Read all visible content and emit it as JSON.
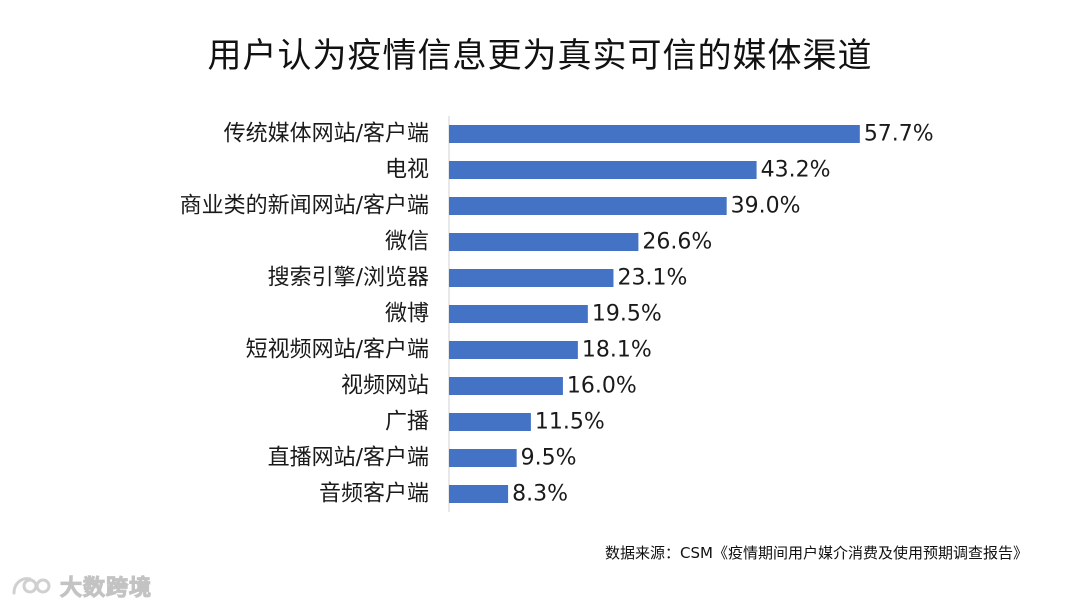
{
  "chart_data": {
    "type": "bar",
    "orientation": "horizontal",
    "title": "用户认为疫情信息更为真实可信的媒体渠道",
    "categories": [
      "传统媒体网站/客户端",
      "电视",
      "商业类的新闻网站/客户端",
      "微信",
      "搜索引擎/浏览器",
      "微博",
      "短视频网站/客户端",
      "视频网站",
      "广播",
      "直播网站/客户端",
      "音频客户端"
    ],
    "values": [
      57.7,
      43.2,
      39.0,
      26.6,
      23.1,
      19.5,
      18.1,
      16.0,
      11.5,
      9.5,
      8.3
    ],
    "data_labels": [
      "57.7%",
      "43.2%",
      "39.0%",
      "26.6%",
      "23.1%",
      "19.5%",
      "18.1%",
      "16.0%",
      "11.5%",
      "9.5%",
      "8.3%"
    ],
    "xlim": [
      0,
      60
    ],
    "bar_color": "#4472C4",
    "grid": false,
    "legend": "none"
  },
  "source_note": "数据来源：CSM《疫情期间用户媒介消费及使用预期调查报告》",
  "watermark": {
    "text": "大数跨境",
    "icon": "logo-mark-icon"
  }
}
